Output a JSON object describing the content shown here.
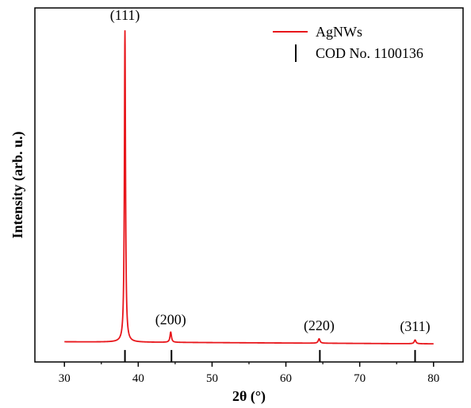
{
  "chart_data": {
    "type": "line",
    "xlabel": "2θ (°)",
    "ylabel": "Intensity (arb. u.)",
    "xlim": [
      26,
      84
    ],
    "ylim": [
      -3.5,
      100
    ],
    "x_ticks": [
      30,
      40,
      50,
      60,
      70,
      80
    ],
    "x_tick_labels": [
      "30",
      "40",
      "50",
      "60",
      "70",
      "80"
    ],
    "y_ticks_shown": false,
    "grid": false,
    "legend_position": "top-right",
    "legend": [
      {
        "label": "AgNWs",
        "style": "line",
        "color": "#e8161b"
      },
      {
        "label": "COD No. 1100136",
        "style": "vertical-bar",
        "color": "#000000"
      }
    ],
    "series": [
      {
        "name": "AgNWs",
        "color": "#e8161b",
        "baseline": 2.4,
        "baseline_slope": -0.012,
        "peaks": [
          {
            "center": 38.2,
            "height": 91.0,
            "width": 0.09
          },
          {
            "center": 44.4,
            "height": 3.0,
            "width": 0.12
          },
          {
            "center": 64.5,
            "height": 1.3,
            "width": 0.14
          },
          {
            "center": 77.5,
            "height": 1.1,
            "width": 0.14
          }
        ]
      }
    ],
    "reference_lines": {
      "name": "COD No. 1100136",
      "x": [
        38.2,
        44.5,
        64.6,
        77.5
      ],
      "y_top": 0,
      "y_bottom": -3.5
    },
    "annotations": [
      {
        "text": "(111)",
        "x": 38.2,
        "y": 96.5
      },
      {
        "text": "(200)",
        "x": 44.4,
        "y": 7.5
      },
      {
        "text": "(220)",
        "x": 64.5,
        "y": 5.8
      },
      {
        "text": "(311)",
        "x": 77.5,
        "y": 5.6
      }
    ]
  }
}
